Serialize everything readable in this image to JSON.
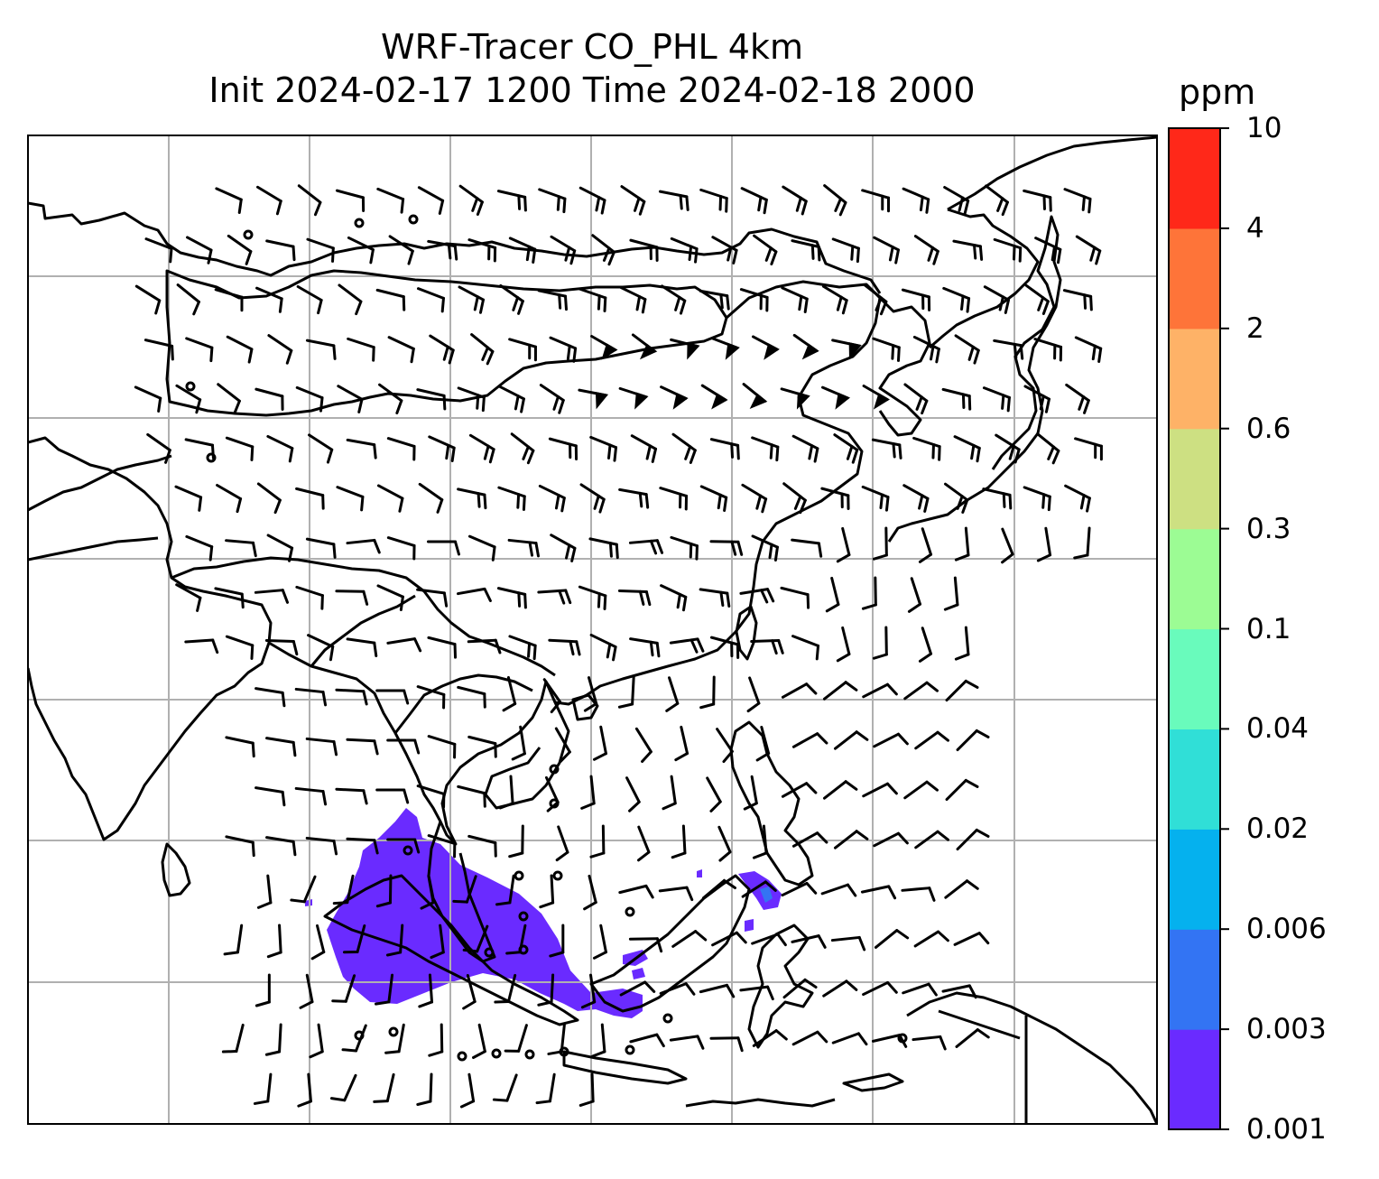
{
  "figure": {
    "title_line1": "WRF-Tracer CO_PHL 4km",
    "title_line2": "Init 2024-02-17 1200 Time 2024-02-18 2000"
  },
  "colorbar": {
    "unit": "ppm",
    "levels": [
      "0.001",
      "0.003",
      "0.006",
      "0.02",
      "0.04",
      "0.1",
      "0.3",
      "0.6",
      "2",
      "4",
      "10"
    ],
    "colors": [
      "#6a2bff",
      "#3374f3",
      "#05b1ee",
      "#30dfd7",
      "#69fbbc",
      "#9cfc94",
      "#cde082",
      "#feb267",
      "#fe7439",
      "#ff2819"
    ]
  },
  "map": {
    "tracer_fill_color": "#6a2bff",
    "tracer_high_color": "#3374f3",
    "gridline_color": "#b0b0b0",
    "coastline_color": "#000000"
  }
}
